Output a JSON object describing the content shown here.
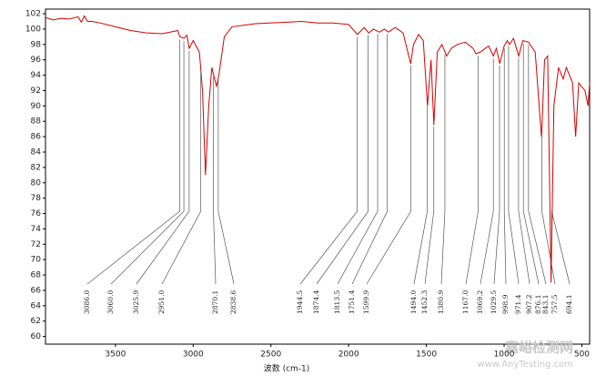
{
  "chart_data": {
    "type": "line",
    "x_label": "波数 (cm-1)",
    "xlim": [
      3950,
      450
    ],
    "xticks": [
      3500,
      3000,
      2500,
      2000,
      1500,
      1000,
      500
    ],
    "ylim": [
      59,
      102.6
    ],
    "yticks": [
      60,
      62,
      64,
      66,
      68,
      70,
      72,
      74,
      76,
      78,
      80,
      82,
      84,
      86,
      88,
      90,
      92,
      94,
      96,
      98,
      100,
      102
    ],
    "series": [
      {
        "color": "#d40000",
        "x": [
          3950,
          3900,
          3850,
          3800,
          3740,
          3720,
          3700,
          3680,
          3650,
          3600,
          3500,
          3400,
          3300,
          3200,
          3100,
          3086,
          3060,
          3040,
          3026,
          3000,
          2960,
          2940,
          2921,
          2900,
          2880,
          2850,
          2835,
          2800,
          2750,
          2600,
          2400,
          2300,
          2200,
          2100,
          2000,
          1944,
          1900,
          1871,
          1840,
          1802,
          1770,
          1745,
          1700,
          1650,
          1601,
          1583,
          1550,
          1520,
          1493,
          1470,
          1452,
          1430,
          1400,
          1370,
          1340,
          1300,
          1250,
          1200,
          1181,
          1154,
          1100,
          1069,
          1050,
          1028,
          1000,
          980,
          965,
          940,
          906,
          880,
          843,
          800,
          760,
          757,
          740,
          720,
          698,
          680,
          650,
          620,
          600,
          560,
          540,
          520,
          480,
          460,
          450
        ],
        "values": [
          101.5,
          101.2,
          101.4,
          101.3,
          101.6,
          100.9,
          101.7,
          101.0,
          101.0,
          100.8,
          100.3,
          99.8,
          99.5,
          99.4,
          99.8,
          99.0,
          98.8,
          99.2,
          97.5,
          98.5,
          97.0,
          92.0,
          81.0,
          90.0,
          95.0,
          92.5,
          94.0,
          99.0,
          100.3,
          100.7,
          100.9,
          101.0,
          100.8,
          100.8,
          100.6,
          99.3,
          100.2,
          99.5,
          100.0,
          99.6,
          100.0,
          99.6,
          100.2,
          99.5,
          95.5,
          98.0,
          99.3,
          98.5,
          90.0,
          96.0,
          87.5,
          97.0,
          98.0,
          96.5,
          97.5,
          98.0,
          98.3,
          97.5,
          96.8,
          97.0,
          97.8,
          96.5,
          97.5,
          95.5,
          97.8,
          98.5,
          98.0,
          98.8,
          96.5,
          98.5,
          98.3,
          97.0,
          86.0,
          87.0,
          96.0,
          96.5,
          67.0,
          90.0,
          95.0,
          93.5,
          95.0,
          93.0,
          86.0,
          93.0,
          92.0,
          90.0,
          93.0
        ]
      }
    ],
    "annotations": [
      {
        "value": 3086.0,
        "label": "3086.0"
      },
      {
        "value": 3060.0,
        "label": "3060.0"
      },
      {
        "value": 3025.9,
        "label": "3025.9"
      },
      {
        "value": 2951.0,
        "label": "2951.0"
      },
      {
        "value": 2870.1,
        "label": "2870.1"
      },
      {
        "value": 2838.6,
        "label": "2838.6"
      },
      {
        "value": 1944.5,
        "label": "1944.5"
      },
      {
        "value": 1874.4,
        "label": "1874.4"
      },
      {
        "value": 1813.5,
        "label": "1813.5"
      },
      {
        "value": 1751.4,
        "label": "1751.4"
      },
      {
        "value": 1599.9,
        "label": "1599.9"
      },
      {
        "value": 1494.0,
        "label": "1494.0"
      },
      {
        "value": 1452.3,
        "label": "1452.3"
      },
      {
        "value": 1380.9,
        "label": "1380.9"
      },
      {
        "value": 1167.0,
        "label": "1167.0"
      },
      {
        "value": 1069.2,
        "label": "1069.2"
      },
      {
        "value": 1029.5,
        "label": "1029.5"
      },
      {
        "value": 998.9,
        "label": "998.9"
      },
      {
        "value": 971.4,
        "label": "971.4"
      },
      {
        "value": 907.2,
        "label": "907.2"
      },
      {
        "value": 876.1,
        "label": "876.1"
      },
      {
        "value": 843.1,
        "label": "843.1"
      },
      {
        "value": 757.5,
        "label": "757.5"
      },
      {
        "value": 694.1,
        "label": "694.1"
      }
    ],
    "watermark": [
      "嘉峪检测网",
      "www.AnyTesting.com"
    ]
  }
}
